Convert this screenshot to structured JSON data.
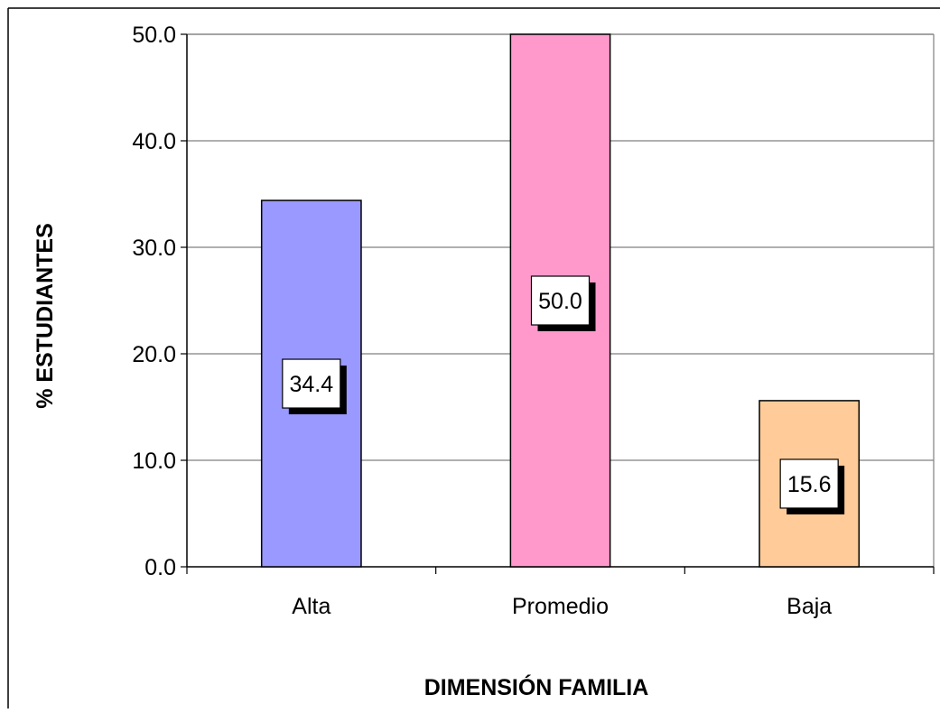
{
  "chart_data": {
    "type": "bar",
    "title": "",
    "categories": [
      "Alta",
      "Promedio",
      "Baja"
    ],
    "values": [
      34.4,
      50.0,
      15.6
    ],
    "data_labels": [
      "34.4",
      "50.0",
      "15.6"
    ],
    "bar_colors": [
      "#9999ff",
      "#ff99cc",
      "#ffcc99"
    ],
    "xlabel": "DIMENSIÓN FAMILIA",
    "ylabel": "% ESTUDIANTES",
    "ylim": [
      0,
      50
    ],
    "yticks": [
      0,
      10,
      20,
      30,
      40,
      50
    ],
    "ytick_labels": [
      "0.0",
      "10.0",
      "20.0",
      "30.0",
      "40.0",
      "50.0"
    ],
    "grid": true,
    "legend": "none",
    "gridline_color": "#808080",
    "plot_border_color": "#808080"
  }
}
